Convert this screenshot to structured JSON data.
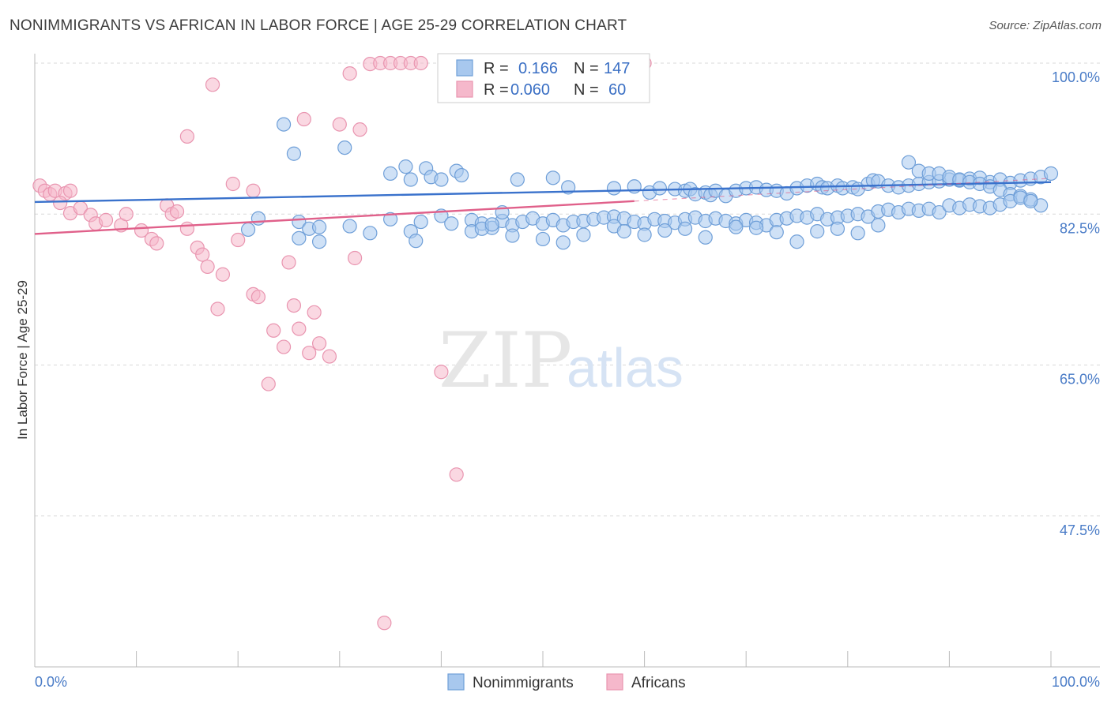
{
  "title": "NONIMMIGRANTS VS AFRICAN IN LABOR FORCE | AGE 25-29 CORRELATION CHART",
  "source": "Source: ZipAtlas.com",
  "watermark": {
    "zip": "ZIP",
    "atlas": "atlas"
  },
  "colors": {
    "blue_fill": "#a8c8ee",
    "blue_stroke": "#6f9fd8",
    "blue_line": "#3a72cc",
    "pink_fill": "#f5b8cb",
    "pink_stroke": "#e995b0",
    "pink_line": "#e0608a",
    "grid": "#d8d8d8",
    "tick_label": "#4a7cc7"
  },
  "chart_data": {
    "type": "scatter",
    "xlabel": "",
    "ylabel": "In Labor Force | Age 25-29",
    "xlim": [
      0,
      100
    ],
    "ylim": [
      30,
      101
    ],
    "x_tick_labels": [
      "0.0%",
      "100.0%"
    ],
    "y_ticks": [
      100.0,
      82.5,
      65.0,
      47.5
    ],
    "y_tick_labels": [
      "100.0%",
      "82.5%",
      "65.0%",
      "47.5%"
    ],
    "grid": true,
    "legend": {
      "placement": "top-center",
      "entries": [
        {
          "r_label": "R =",
          "r": "0.166",
          "n_label": "N =",
          "n": "147"
        },
        {
          "r_label": "R =",
          "r": "0.060",
          "n_label": "N =",
          "n": "60"
        }
      ]
    },
    "series": [
      {
        "name": "Nonimmigrants",
        "trend": [
          [
            0,
            83.9
          ],
          [
            100,
            86.2
          ]
        ],
        "points": [
          [
            24.5,
            92.9
          ],
          [
            25.5,
            89.5
          ],
          [
            30.5,
            90.2
          ],
          [
            35,
            87.2
          ],
          [
            36.5,
            88
          ],
          [
            37,
            86.5
          ],
          [
            38.5,
            87.8
          ],
          [
            39,
            86.8
          ],
          [
            40,
            86.5
          ],
          [
            41.5,
            87.5
          ],
          [
            42,
            87
          ],
          [
            47.5,
            86.5
          ],
          [
            51,
            86.7
          ],
          [
            52.5,
            85.6
          ],
          [
            57,
            85.5
          ],
          [
            59,
            85.7
          ],
          [
            60.5,
            85
          ],
          [
            61.5,
            85.5
          ],
          [
            63,
            85.4
          ],
          [
            64,
            85.2
          ],
          [
            64.5,
            85.4
          ],
          [
            65,
            84.8
          ],
          [
            66,
            85
          ],
          [
            66.5,
            84.7
          ],
          [
            67,
            85.2
          ],
          [
            68,
            84.6
          ],
          [
            69,
            85.2
          ],
          [
            70,
            85.5
          ],
          [
            71,
            85.6
          ],
          [
            72,
            85.3
          ],
          [
            73,
            85.2
          ],
          [
            74,
            84.9
          ],
          [
            75,
            85.5
          ],
          [
            76,
            85.8
          ],
          [
            77,
            86
          ],
          [
            77.5,
            85.6
          ],
          [
            78,
            85.5
          ],
          [
            79,
            85.8
          ],
          [
            79.5,
            85.5
          ],
          [
            80.5,
            85.6
          ],
          [
            81,
            85.4
          ],
          [
            82,
            86
          ],
          [
            82.5,
            86.4
          ],
          [
            83,
            86.3
          ],
          [
            84,
            85.8
          ],
          [
            85,
            85.6
          ],
          [
            86,
            85.8
          ],
          [
            87,
            86
          ],
          [
            88,
            86.2
          ],
          [
            89,
            86.3
          ],
          [
            90,
            86.5
          ],
          [
            91,
            86.4
          ],
          [
            92,
            86.6
          ],
          [
            93,
            86.7
          ],
          [
            94,
            86.2
          ],
          [
            95,
            86.5
          ],
          [
            96,
            86.1
          ],
          [
            97,
            86.4
          ],
          [
            98,
            86.6
          ],
          [
            99,
            86.8
          ],
          [
            100,
            87.2
          ],
          [
            86,
            88.5
          ],
          [
            87,
            87.5
          ],
          [
            88,
            87.2
          ],
          [
            89,
            87.2
          ],
          [
            90,
            86.8
          ],
          [
            91,
            86.5
          ],
          [
            92,
            86.2
          ],
          [
            93,
            86.0
          ],
          [
            94,
            85.7
          ],
          [
            95,
            85.3
          ],
          [
            96,
            84.8
          ],
          [
            97,
            84.6
          ],
          [
            98,
            84.2
          ],
          [
            99,
            83.5
          ],
          [
            22,
            82
          ],
          [
            26,
            81.6
          ],
          [
            27,
            80.8
          ],
          [
            28,
            81
          ],
          [
            31,
            81.1
          ],
          [
            35,
            81.9
          ],
          [
            38,
            81.6
          ],
          [
            40,
            82.3
          ],
          [
            41,
            81.4
          ],
          [
            43,
            81.8
          ],
          [
            44,
            81.4
          ],
          [
            45,
            80.9
          ],
          [
            46,
            81.7
          ],
          [
            47,
            81.2
          ],
          [
            48,
            81.6
          ],
          [
            49,
            82.0
          ],
          [
            50,
            81.4
          ],
          [
            51,
            81.8
          ],
          [
            52,
            81.2
          ],
          [
            53,
            81.6
          ],
          [
            54,
            81.7
          ],
          [
            55,
            81.9
          ],
          [
            56,
            82.1
          ],
          [
            57,
            82.2
          ],
          [
            58,
            82.0
          ],
          [
            59,
            81.6
          ],
          [
            60,
            81.4
          ],
          [
            61,
            81.9
          ],
          [
            62,
            81.7
          ],
          [
            63,
            81.5
          ],
          [
            64,
            81.9
          ],
          [
            65,
            82.1
          ],
          [
            66,
            81.7
          ],
          [
            67,
            82.0
          ],
          [
            68,
            81.7
          ],
          [
            69,
            81.4
          ],
          [
            70,
            81.8
          ],
          [
            71,
            81.5
          ],
          [
            72,
            81.2
          ],
          [
            73,
            81.8
          ],
          [
            74,
            82.0
          ],
          [
            75,
            82.3
          ],
          [
            76,
            82.1
          ],
          [
            77,
            82.5
          ],
          [
            78,
            81.9
          ],
          [
            79,
            82.1
          ],
          [
            80,
            82.3
          ],
          [
            81,
            82.5
          ],
          [
            82,
            82.2
          ],
          [
            83,
            82.8
          ],
          [
            84,
            83.0
          ],
          [
            85,
            82.7
          ],
          [
            86,
            83.1
          ],
          [
            87,
            82.9
          ],
          [
            88,
            83.1
          ],
          [
            89,
            82.7
          ],
          [
            90,
            83.5
          ],
          [
            91,
            83.2
          ],
          [
            92,
            83.6
          ],
          [
            93,
            83.4
          ],
          [
            94,
            83.2
          ],
          [
            95,
            83.6
          ],
          [
            96,
            84.0
          ],
          [
            97,
            84.4
          ],
          [
            98,
            84.0
          ],
          [
            21,
            80.7
          ],
          [
            26,
            79.7
          ],
          [
            28,
            79.3
          ],
          [
            33,
            80.3
          ],
          [
            37,
            80.5
          ],
          [
            37.5,
            79.4
          ],
          [
            43,
            80.5
          ],
          [
            44,
            80.8
          ],
          [
            45,
            81.3
          ],
          [
            46,
            82.7
          ],
          [
            47,
            80.0
          ],
          [
            50,
            79.6
          ],
          [
            52,
            79.2
          ],
          [
            54,
            80.1
          ],
          [
            57,
            81.1
          ],
          [
            58,
            80.5
          ],
          [
            60,
            80.1
          ],
          [
            62,
            80.6
          ],
          [
            64,
            80.8
          ],
          [
            66,
            79.8
          ],
          [
            69,
            81.0
          ],
          [
            71,
            80.9
          ],
          [
            73,
            80.4
          ],
          [
            75,
            79.3
          ],
          [
            77,
            80.5
          ],
          [
            79,
            80.8
          ],
          [
            81,
            80.3
          ],
          [
            83,
            81.2
          ]
        ]
      },
      {
        "name": "Africans",
        "trend": [
          [
            0,
            80.2
          ],
          [
            59,
            84.0
          ]
        ],
        "points": [
          [
            0.5,
            85.8
          ],
          [
            1,
            85.2
          ],
          [
            1.5,
            84.8
          ],
          [
            2,
            85.2
          ],
          [
            3,
            84.9
          ],
          [
            3.5,
            85.2
          ],
          [
            2.5,
            83.8
          ],
          [
            3.5,
            82.6
          ],
          [
            4.5,
            83.2
          ],
          [
            5.5,
            82.4
          ],
          [
            6,
            81.4
          ],
          [
            7,
            81.8
          ],
          [
            8.5,
            81.2
          ],
          [
            9,
            82.5
          ],
          [
            10.5,
            80.6
          ],
          [
            11.5,
            79.6
          ],
          [
            12,
            79.1
          ],
          [
            13,
            83.5
          ],
          [
            13.5,
            82.5
          ],
          [
            14,
            82.8
          ],
          [
            15,
            80.8
          ],
          [
            16,
            78.6
          ],
          [
            16.5,
            77.8
          ],
          [
            17,
            76.4
          ],
          [
            18,
            71.5
          ],
          [
            18.5,
            75.5
          ],
          [
            19.5,
            86
          ],
          [
            20,
            79.5
          ],
          [
            21.5,
            73.2
          ],
          [
            21.5,
            85.2
          ],
          [
            22,
            72.9
          ],
          [
            23,
            62.8
          ],
          [
            23.5,
            69
          ],
          [
            24.5,
            67.1
          ],
          [
            25.5,
            71.9
          ],
          [
            25,
            76.9
          ],
          [
            26,
            69.2
          ],
          [
            27,
            66.4
          ],
          [
            27.5,
            71.1
          ],
          [
            28,
            67.5
          ],
          [
            29,
            66
          ],
          [
            30,
            92.9
          ],
          [
            31,
            98.8
          ],
          [
            32,
            92.3
          ],
          [
            33,
            99.9
          ],
          [
            34,
            100
          ],
          [
            35,
            100
          ],
          [
            36,
            100
          ],
          [
            37,
            100
          ],
          [
            38,
            100
          ],
          [
            42,
            100
          ],
          [
            43,
            100
          ],
          [
            44,
            100
          ],
          [
            45,
            100
          ],
          [
            57,
            100
          ],
          [
            58.5,
            100
          ],
          [
            60,
            100
          ],
          [
            17.5,
            97.5
          ],
          [
            15,
            91.5
          ],
          [
            26.5,
            93.5
          ],
          [
            31.5,
            77.4
          ],
          [
            40,
            64.2
          ],
          [
            41.5,
            52.3
          ],
          [
            34.4,
            35.1
          ]
        ]
      }
    ]
  },
  "bottom_legend": [
    {
      "label": "Nonimmigrants"
    },
    {
      "label": "Africans"
    }
  ]
}
